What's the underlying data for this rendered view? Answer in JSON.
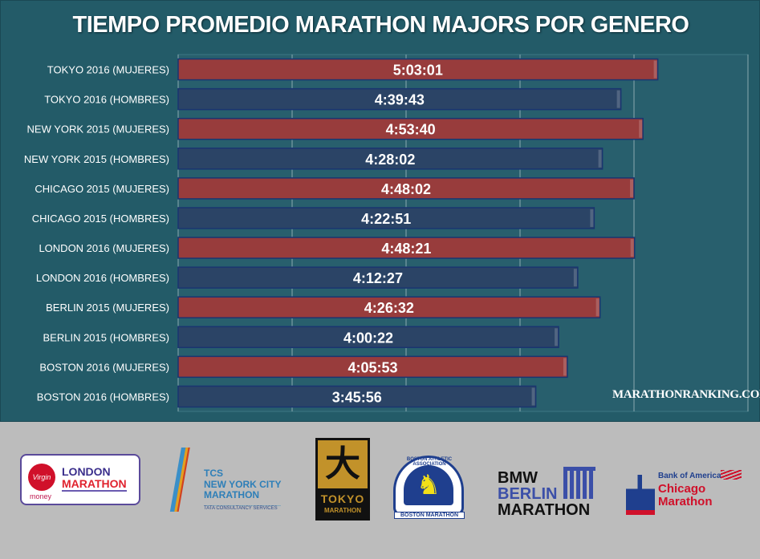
{
  "chart_data": {
    "type": "bar",
    "orientation": "horizontal",
    "title": "TIEMPO PROMEDIO MARATHON MAJORS POR GENERO",
    "categories": [
      "TOKYO 2016 (MUJERES)",
      "TOKYO 2016 (HOMBRES)",
      "NEW YORK 2015 (MUJERES)",
      "NEW YORK 2015 (HOMBRES)",
      "CHICAGO 2015 (MUJERES)",
      "CHICAGO 2015 (HOMBRES)",
      "LONDON 2016 (MUJERES)",
      "LONDON 2016 (HOMBRES)",
      "BERLIN 2015 (MUJERES)",
      "BERLIN 2015 (HOMBRES)",
      "BOSTON 2016 (MUJERES)",
      "BOSTON 2016 (HOMBRES)"
    ],
    "values": [
      "5:03:01",
      "4:39:43",
      "4:53:40",
      "4:28:02",
      "4:48:02",
      "4:22:51",
      "4:48:21",
      "4:12:27",
      "4:26:32",
      "4:00:22",
      "4:05:53",
      "3:45:56"
    ],
    "xlim": [
      "0:00:00",
      "6:00:00"
    ],
    "major_unit": "1:12:00",
    "grid": true,
    "tick_labels_shown": false,
    "colors": {
      "mujeres": "#983c3c",
      "hombres": "#2b4466",
      "background": "#235b68"
    }
  },
  "watermark": "MARATHONRANKING.COM",
  "logos": {
    "london": {
      "badge": "Virgin",
      "line1": "LONDON",
      "line2": "MARATHON",
      "sub": "money"
    },
    "nyc": {
      "line1": "TCS",
      "line2": "NEW YORK CITY",
      "line3": "MARATHON",
      "sub": "TATA CONSULTANCY SERVICES"
    },
    "tokyo": {
      "glyph": "大",
      "line1": "TOKYO",
      "line2": "MARATHON"
    },
    "boston": {
      "ring": "BOSTON ATHLETIC ASSOCIATION",
      "banner": "BOSTON MARATHON"
    },
    "berlin": {
      "line1": "BMW",
      "line2": "BERLIN",
      "line3": "MARATHON"
    },
    "chicago": {
      "sponsor": "Bank of America",
      "line1": "Chicago",
      "line2": "Marathon"
    }
  }
}
